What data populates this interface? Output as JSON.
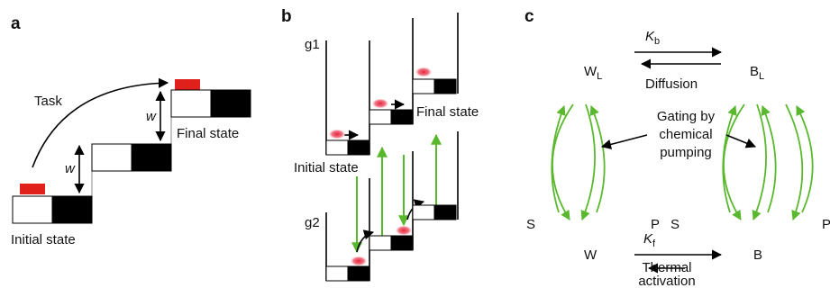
{
  "panels": [
    {
      "label": "a",
      "task": "Task",
      "w_labels": [
        "w",
        "w"
      ],
      "final_state": "Final state",
      "initial_state": "Initial state"
    },
    {
      "label": "b",
      "groups": [
        "g1",
        "g2"
      ],
      "final_state": "Final state",
      "initial_state": "Initial state"
    },
    {
      "label": "c",
      "rate_top": {
        "symbol": "K",
        "subscript": "b"
      },
      "top_left": {
        "symbol": "W",
        "subscript": "L"
      },
      "top_right": {
        "symbol": "B",
        "subscript": "L"
      },
      "top_process": "Diffusion",
      "gating": [
        "Gating by",
        "chemical",
        "pumping"
      ],
      "left_pair": [
        "S",
        "P"
      ],
      "right_pair": [
        "S",
        "P"
      ],
      "rate_bottom": {
        "symbol": "K",
        "subscript": "f"
      },
      "bottom_left": "W",
      "bottom_right": "B",
      "bottom_process": [
        "Thermal",
        "activation"
      ]
    }
  ]
}
